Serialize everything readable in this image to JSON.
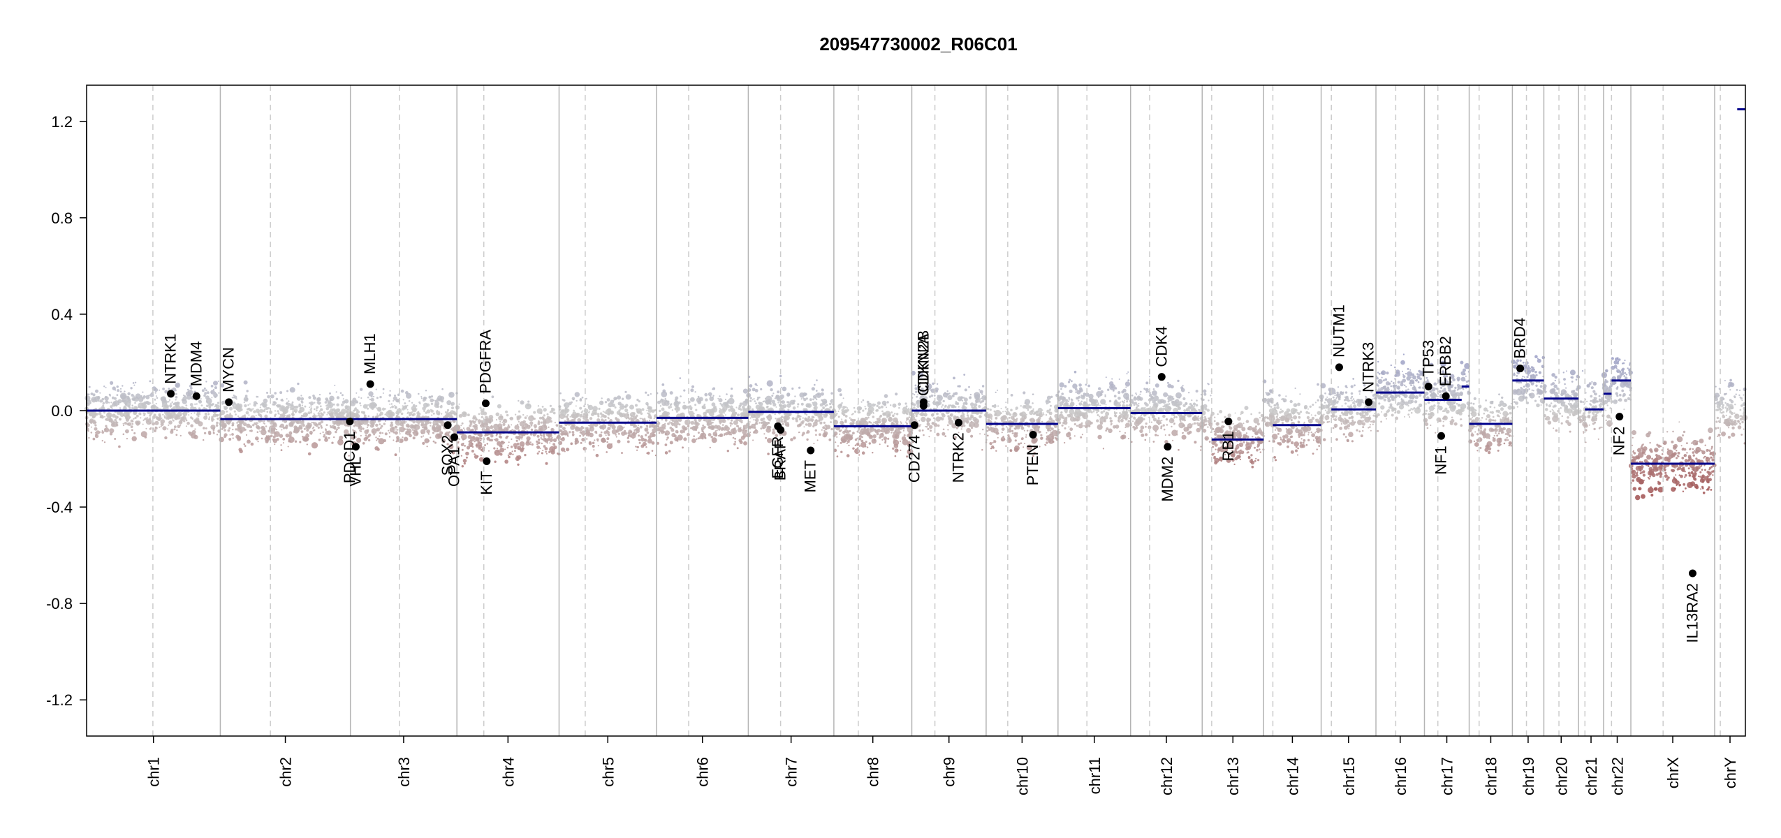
{
  "chart_data": {
    "type": "scatter",
    "title": "209547730002_R06C01",
    "xlabel": "",
    "ylabel": "",
    "ylim": [
      -1.35,
      1.35
    ],
    "y_ticks": [
      "1.2",
      "0.8",
      "0.4",
      "0.0",
      "-0.4",
      "-0.8",
      "-1.2"
    ],
    "grid": false,
    "colors": {
      "segment": "#00008b",
      "gain": "#8a8fc4",
      "neutral": "#c8c8c8",
      "loss": "#a05050",
      "chrom_line": "#b4b4b4",
      "centromere_line": "#cccccc",
      "gene_point": "#000000"
    },
    "chromosomes": [
      {
        "name": "chr1",
        "start": 0,
        "end": 248.9,
        "centromere": 123.4
      },
      {
        "name": "chr2",
        "start": 248.9,
        "end": 491.1,
        "centromere": 342.2
      },
      {
        "name": "chr3",
        "start": 491.1,
        "end": 689.4,
        "centromere": 582.3
      },
      {
        "name": "chr4",
        "start": 689.4,
        "end": 879.6,
        "centromere": 739.5
      },
      {
        "name": "chr5",
        "start": 879.6,
        "end": 1061.1,
        "centromere": 928.3
      },
      {
        "name": "chr6",
        "start": 1061.1,
        "end": 1231.9,
        "centromere": 1120.9
      },
      {
        "name": "chr7",
        "start": 1231.9,
        "end": 1391.2,
        "centromere": 1292.0
      },
      {
        "name": "chr8",
        "start": 1391.2,
        "end": 1536.3,
        "centromere": 1436.7
      },
      {
        "name": "chr9",
        "start": 1536.3,
        "end": 1674.7,
        "centromere": 1579.3
      },
      {
        "name": "chr10",
        "start": 1674.7,
        "end": 1808.5,
        "centromere": 1714.9
      },
      {
        "name": "chr11",
        "start": 1808.5,
        "end": 1943.6,
        "centromere": 1862.3
      },
      {
        "name": "chr12",
        "start": 1943.6,
        "end": 2076.9,
        "centromere": 1979.1
      },
      {
        "name": "chr13",
        "start": 2076.9,
        "end": 2191.3,
        "centromere": 2094.6
      },
      {
        "name": "chr14",
        "start": 2191.3,
        "end": 2298.4,
        "centromere": 2208.5
      },
      {
        "name": "chr15",
        "start": 2298.4,
        "end": 2400.4,
        "centromere": 2317.4
      },
      {
        "name": "chr16",
        "start": 2400.4,
        "end": 2490.7,
        "centromere": 2437.2
      },
      {
        "name": "chr17",
        "start": 2490.7,
        "end": 2574.0,
        "centromere": 2515.7
      },
      {
        "name": "chr18",
        "start": 2574.0,
        "end": 2654.4,
        "centromere": 2592.5
      },
      {
        "name": "chr19",
        "start": 2654.4,
        "end": 2713.0,
        "centromere": 2680.6
      },
      {
        "name": "chr20",
        "start": 2713.0,
        "end": 2777.5,
        "centromere": 2741.1
      },
      {
        "name": "chr21",
        "start": 2777.5,
        "end": 2824.2,
        "centromere": 2789.5
      },
      {
        "name": "chr22",
        "start": 2824.2,
        "end": 2875.0,
        "centromere": 2839.0
      },
      {
        "name": "chrX",
        "start": 2875.0,
        "end": 3031.0,
        "centromere": 2935.0
      },
      {
        "name": "chrY",
        "start": 3031.0,
        "end": 3088.2,
        "centromere": 3041.5
      }
    ],
    "segments": [
      {
        "x0": 0,
        "x1": 248.9,
        "y": 0.0
      },
      {
        "x0": 248.9,
        "x1": 689.4,
        "y": -0.035
      },
      {
        "x0": 689.4,
        "x1": 879.6,
        "y": -0.09
      },
      {
        "x0": 879.6,
        "x1": 1061.1,
        "y": -0.05
      },
      {
        "x0": 1061.1,
        "x1": 1231.9,
        "y": -0.03
      },
      {
        "x0": 1231.9,
        "x1": 1391.2,
        "y": -0.005
      },
      {
        "x0": 1391.2,
        "x1": 1536.3,
        "y": -0.065
      },
      {
        "x0": 1536.3,
        "x1": 1674.7,
        "y": 0.0
      },
      {
        "x0": 1674.7,
        "x1": 1808.5,
        "y": -0.055
      },
      {
        "x0": 1808.5,
        "x1": 1943.6,
        "y": 0.01
      },
      {
        "x0": 1943.6,
        "x1": 2076.9,
        "y": -0.01
      },
      {
        "x0": 2094.6,
        "x1": 2191.3,
        "y": -0.12
      },
      {
        "x0": 2208.5,
        "x1": 2298.4,
        "y": -0.06
      },
      {
        "x0": 2317.4,
        "x1": 2400.4,
        "y": 0.005
      },
      {
        "x0": 2400.4,
        "x1": 2490.7,
        "y": 0.075
      },
      {
        "x0": 2490.7,
        "x1": 2560.0,
        "y": 0.045
      },
      {
        "x0": 2560.0,
        "x1": 2574.0,
        "y": 0.1
      },
      {
        "x0": 2574.0,
        "x1": 2654.4,
        "y": -0.055
      },
      {
        "x0": 2654.4,
        "x1": 2713.0,
        "y": 0.125
      },
      {
        "x0": 2713.0,
        "x1": 2777.5,
        "y": 0.05
      },
      {
        "x0": 2789.5,
        "x1": 2824.2,
        "y": 0.005
      },
      {
        "x0": 2824.2,
        "x1": 2839.0,
        "y": 0.07
      },
      {
        "x0": 2839.0,
        "x1": 2875.0,
        "y": 0.125
      },
      {
        "x0": 2875.0,
        "x1": 3031.0,
        "y": -0.22
      },
      {
        "x0": 3073.0,
        "x1": 3088.2,
        "y": 1.25
      }
    ],
    "genes": [
      {
        "name": "NTRK1",
        "x": 156.8,
        "y": 0.07
      },
      {
        "name": "MDM4",
        "x": 204.5,
        "y": 0.06
      },
      {
        "name": "MYCN",
        "x": 264.8,
        "y": 0.035
      },
      {
        "name": "PDCD1",
        "x": 490.0,
        "y": -0.045
      },
      {
        "name": "VHL",
        "x": 501.2,
        "y": -0.15
      },
      {
        "name": "MLH1",
        "x": 528.1,
        "y": 0.11
      },
      {
        "name": "SOX2",
        "x": 672.4,
        "y": -0.06
      },
      {
        "name": "OPA1",
        "x": 684.6,
        "y": -0.11
      },
      {
        "name": "PDGFRA",
        "x": 743.1,
        "y": 0.03
      },
      {
        "name": "KIT",
        "x": 744.8,
        "y": -0.21
      },
      {
        "name": "EGFR",
        "x": 1287.0,
        "y": -0.065
      },
      {
        "name": "BRAF",
        "x": 1292.0,
        "y": -0.08
      },
      {
        "name": "MET",
        "x": 1348.0,
        "y": -0.165
      },
      {
        "name": "CD274",
        "x": 1541.3,
        "y": -0.06
      },
      {
        "name": "CDKN2A",
        "x": 1558.2,
        "y": 0.02
      },
      {
        "name": "CDKN2B",
        "x": 1558.3,
        "y": 0.035
      },
      {
        "name": "NTRK2",
        "x": 1623.4,
        "y": -0.05
      },
      {
        "name": "PTEN",
        "x": 1762.0,
        "y": -0.1
      },
      {
        "name": "CDK4",
        "x": 2001.5,
        "y": 0.14
      },
      {
        "name": "MDM2",
        "x": 2012.7,
        "y": -0.15
      },
      {
        "name": "RB1",
        "x": 2125.8,
        "y": -0.045
      },
      {
        "name": "NUTM1",
        "x": 2332.0,
        "y": 0.18
      },
      {
        "name": "NTRK3",
        "x": 2386.9,
        "y": 0.035
      },
      {
        "name": "TP53",
        "x": 2498.2,
        "y": 0.1
      },
      {
        "name": "ERBB2",
        "x": 2530.6,
        "y": 0.06
      },
      {
        "name": "NF1",
        "x": 2521.9,
        "y": -0.105
      },
      {
        "name": "BRD4",
        "x": 2669.0,
        "y": 0.175
      },
      {
        "name": "NF2",
        "x": 2853.8,
        "y": -0.025
      },
      {
        "name": "IL13RA2",
        "x": 2990.0,
        "y": -0.675
      }
    ]
  }
}
